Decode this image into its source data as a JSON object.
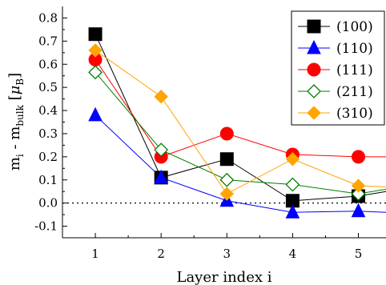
{
  "chart_data": {
    "type": "line",
    "xlabel": "Layer index i",
    "ylabel": {
      "main": "m",
      "sub1": "i",
      "mid": " - m",
      "sub2": "bulk",
      "unit_open": " [",
      "unit_mu": "μ",
      "unit_sub": "B",
      "unit_close": "]"
    },
    "x_ticks": [
      1,
      2,
      3,
      4,
      5
    ],
    "y_ticks": [
      -0.1,
      0.0,
      0.1,
      0.2,
      0.3,
      0.4,
      0.5,
      0.6,
      0.7,
      0.8
    ],
    "y_tick_labels": [
      "-0.1",
      "0.0",
      "0.1",
      "0.2",
      "0.3",
      "0.4",
      "0.5",
      "0.6",
      "0.7",
      "0.8"
    ],
    "x_tick_labels": [
      "1",
      "2",
      "3",
      "4",
      "5"
    ],
    "xlim": [
      0.5,
      5.42
    ],
    "ylim": [
      -0.15,
      0.85
    ],
    "zero_line": true,
    "legend_position": "top-right",
    "series": [
      {
        "name": "(100)",
        "color": "#000000",
        "marker": "square",
        "filled": true,
        "x": [
          1,
          2,
          3,
          4,
          5,
          5.42
        ],
        "y": [
          0.73,
          0.11,
          0.19,
          0.01,
          0.03,
          0.05
        ]
      },
      {
        "name": "(110)",
        "color": "#0000ff",
        "marker": "triangle",
        "filled": true,
        "x": [
          1,
          2,
          3,
          4,
          5,
          5.42
        ],
        "y": [
          0.38,
          0.11,
          0.01,
          -0.04,
          -0.035,
          -0.04
        ]
      },
      {
        "name": "(111)",
        "color": "#ff0000",
        "marker": "circle",
        "filled": true,
        "x": [
          1,
          2,
          3,
          4,
          5,
          5.42
        ],
        "y": [
          0.62,
          0.2,
          0.3,
          0.21,
          0.2,
          0.2
        ]
      },
      {
        "name": "(211)",
        "color": "#008000",
        "marker": "diamond",
        "filled": false,
        "x": [
          1,
          2,
          3,
          4,
          5,
          5.42
        ],
        "y": [
          0.565,
          0.23,
          0.1,
          0.08,
          0.04,
          0.06
        ]
      },
      {
        "name": "(310)",
        "color": "#ffa500",
        "marker": "diamond",
        "filled": true,
        "x": [
          1,
          2,
          3,
          4,
          5,
          5.42
        ],
        "y": [
          0.66,
          0.46,
          0.04,
          0.19,
          0.075,
          0.07
        ]
      }
    ]
  }
}
